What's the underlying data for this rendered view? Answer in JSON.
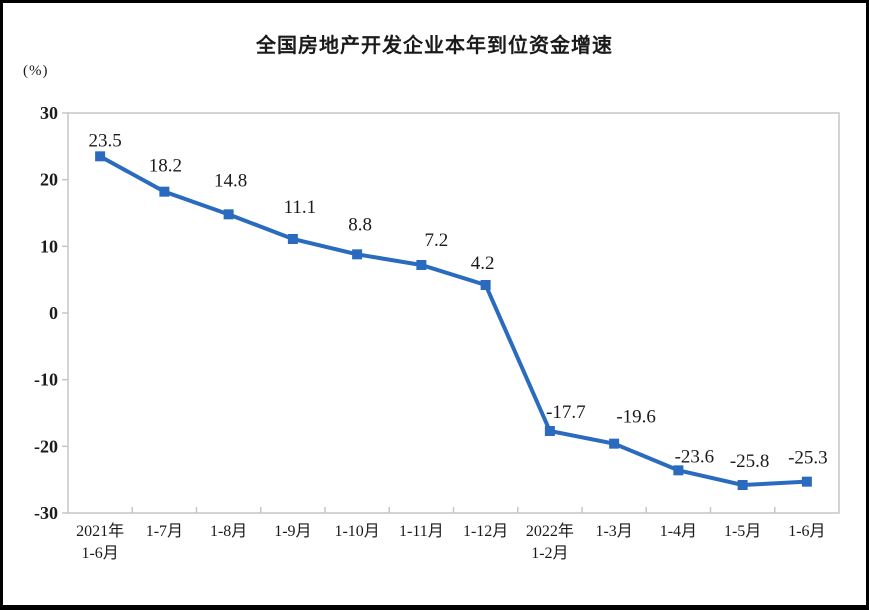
{
  "frame": {
    "background": "#ffffff",
    "border_color": "#000000"
  },
  "chart_data": {
    "type": "line",
    "title": "全国房地产开发企业本年到位资金增速",
    "ylabel": "(%)",
    "categories": [
      [
        "2021年",
        "1-6月"
      ],
      [
        "1-7月"
      ],
      [
        "1-8月"
      ],
      [
        "1-9月"
      ],
      [
        "1-10月"
      ],
      [
        "1-11月"
      ],
      [
        "1-12月"
      ],
      [
        "2022年",
        "1-2月"
      ],
      [
        "1-3月"
      ],
      [
        "1-4月"
      ],
      [
        "1-5月"
      ],
      [
        "1-6月"
      ]
    ],
    "values": [
      23.5,
      18.2,
      14.8,
      11.1,
      8.8,
      7.2,
      4.2,
      -17.7,
      -19.6,
      -23.6,
      -25.8,
      -25.3
    ],
    "data_labels": [
      "23.5",
      "18.2",
      "14.8",
      "11.1",
      "8.8",
      "7.2",
      "4.2",
      "-17.7",
      "-19.6",
      "-23.6",
      "-25.8",
      "-25.3"
    ],
    "yticks": [
      30,
      20,
      10,
      0,
      -10,
      -20,
      -30
    ],
    "ylim": [
      -30,
      30
    ],
    "grid": false,
    "legend": "none",
    "line_color": "#2A6BBF",
    "marker": "square",
    "axis_color": "#c6c6c6",
    "label_color": "#1a1a1a"
  }
}
